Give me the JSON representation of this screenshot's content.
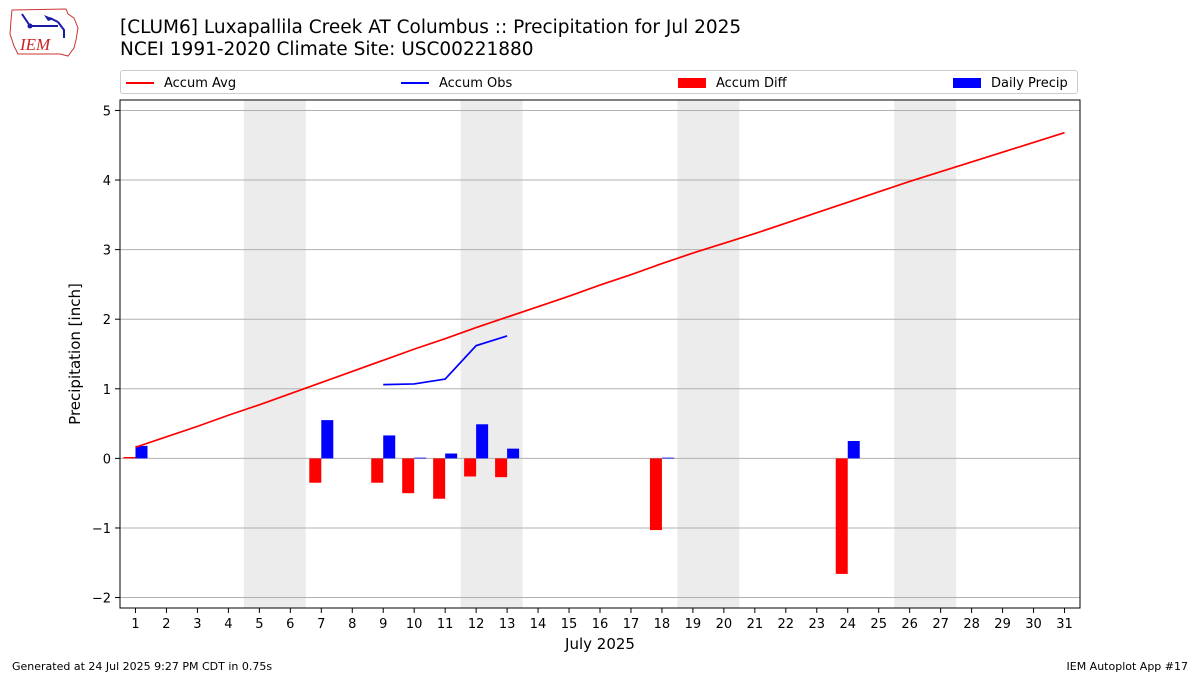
{
  "logo": {
    "text": "IEM"
  },
  "title": {
    "line1": "[CLUM6] Luxapallila Creek  AT Columbus :: Precipitation for Jul 2025",
    "line2": "NCEI 1991-2020 Climate Site: USC00221880"
  },
  "footer": {
    "left": "Generated at 24 Jul 2025 9:27 PM CDT in 0.75s",
    "right": "IEM Autoplot App #17"
  },
  "chart_data": {
    "type": "bar",
    "xlabel": "July 2025",
    "ylabel": "Precipitation [inch]",
    "xlim": [
      0.5,
      31.5
    ],
    "ylim": [
      -2.15,
      5.15
    ],
    "yticks": [
      -2,
      -1,
      0,
      1,
      2,
      3,
      4,
      5
    ],
    "yticklabels": [
      "−2",
      "−1",
      "0",
      "1",
      "2",
      "3",
      "4",
      "5"
    ],
    "categories": [
      "1",
      "2",
      "3",
      "4",
      "5",
      "6",
      "7",
      "8",
      "9",
      "10",
      "11",
      "12",
      "13",
      "14",
      "15",
      "16",
      "17",
      "18",
      "19",
      "20",
      "21",
      "22",
      "23",
      "24",
      "25",
      "26",
      "27",
      "28",
      "29",
      "30",
      "31"
    ],
    "grid": "horizontal",
    "legend_position": "top",
    "weekend_shading": [
      [
        5,
        6
      ],
      [
        12,
        13
      ],
      [
        19,
        20
      ],
      [
        26,
        27
      ]
    ],
    "series": [
      {
        "name": "Accum Avg",
        "kind": "line",
        "color": "#ff0000",
        "x": [
          1,
          2,
          3,
          4,
          5,
          6,
          7,
          8,
          9,
          10,
          11,
          12,
          13,
          14,
          15,
          16,
          17,
          18,
          19,
          20,
          21,
          22,
          23,
          24,
          25,
          26,
          27,
          28,
          29,
          30,
          31
        ],
        "values": [
          0.16,
          0.31,
          0.46,
          0.62,
          0.77,
          0.93,
          1.09,
          1.25,
          1.41,
          1.57,
          1.72,
          1.88,
          2.03,
          2.18,
          2.33,
          2.49,
          2.64,
          2.8,
          2.95,
          3.09,
          3.23,
          3.38,
          3.53,
          3.68,
          3.83,
          3.98,
          4.12,
          4.26,
          4.4,
          4.54,
          4.68
        ]
      },
      {
        "name": "Accum Obs",
        "kind": "line",
        "color": "#0000ff",
        "x": [
          9,
          10,
          11,
          12,
          13
        ],
        "values": [
          1.06,
          1.07,
          1.14,
          1.62,
          1.76
        ]
      },
      {
        "name": "Accum Diff",
        "kind": "bar",
        "color": "#ff0000",
        "x": [
          1,
          7,
          9,
          10,
          11,
          12,
          13,
          18,
          24
        ],
        "values": [
          0.02,
          -0.35,
          -0.35,
          -0.5,
          -0.58,
          -0.26,
          -0.27,
          -1.03,
          -1.66
        ]
      },
      {
        "name": "Daily Precip",
        "kind": "bar",
        "color": "#0000ff",
        "x": [
          1,
          7,
          9,
          10,
          11,
          12,
          13,
          18,
          24
        ],
        "values": [
          0.18,
          0.55,
          0.33,
          0.01,
          0.07,
          0.49,
          0.14,
          0.01,
          0.25
        ]
      }
    ]
  }
}
